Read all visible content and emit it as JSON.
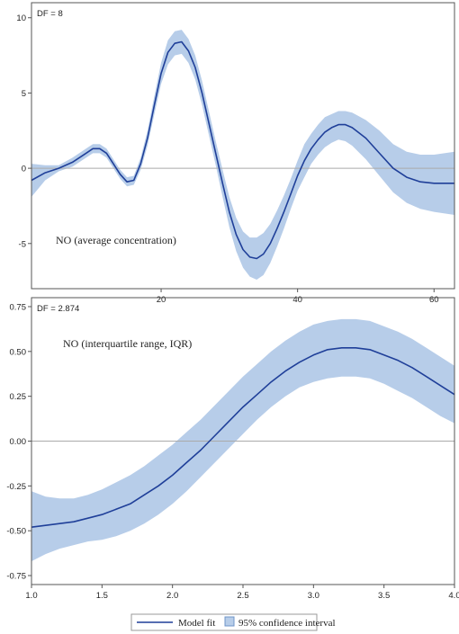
{
  "colors": {
    "line": "#1f3f99",
    "band": "#b7cde9",
    "band_stroke": "#6f95c8",
    "frame": "#555555",
    "zero_line": "#aaaaaa"
  },
  "chart_data": [
    {
      "type": "line",
      "df_label": "DF = 8",
      "annotation": "NO (average concentration)",
      "xlim": [
        1,
        63
      ],
      "ylim": [
        -8,
        11
      ],
      "x_ticks": [
        20,
        40,
        60
      ],
      "y_ticks": [
        -5,
        0,
        5,
        10
      ],
      "reference_line": 0,
      "series": [
        {
          "name": "Model fit",
          "x": [
            1,
            3,
            5,
            7,
            9,
            10,
            11,
            12,
            14,
            15,
            16,
            17,
            18,
            19,
            20,
            21,
            22,
            23,
            24,
            25,
            26,
            27,
            28,
            29,
            30,
            31,
            32,
            33,
            34,
            35,
            36,
            37,
            38,
            39,
            40,
            41,
            42,
            43,
            44,
            45,
            46,
            47,
            48,
            50,
            52,
            54,
            56,
            58,
            60,
            63
          ],
          "y": [
            -0.8,
            -0.3,
            0.0,
            0.4,
            1.0,
            1.3,
            1.3,
            1.0,
            -0.4,
            -0.9,
            -0.8,
            0.3,
            2.0,
            4.2,
            6.3,
            7.7,
            8.3,
            8.4,
            7.8,
            6.7,
            5.0,
            3.0,
            1.0,
            -1.0,
            -2.9,
            -4.4,
            -5.4,
            -5.9,
            -6.0,
            -5.7,
            -5.0,
            -4.0,
            -2.9,
            -1.7,
            -0.5,
            0.5,
            1.3,
            1.9,
            2.4,
            2.7,
            2.9,
            2.9,
            2.7,
            2.0,
            1.0,
            0.0,
            -0.6,
            -0.9,
            -1.0,
            -1.0
          ]
        }
      ],
      "confidence_interval": {
        "name": "95% confidence interval",
        "lower": [
          -1.9,
          -0.8,
          -0.2,
          0.1,
          0.7,
          1.0,
          1.0,
          0.7,
          -0.7,
          -1.2,
          -1.1,
          -0.1,
          1.5,
          3.6,
          5.6,
          6.9,
          7.5,
          7.6,
          7.0,
          5.9,
          4.2,
          2.2,
          0.2,
          -1.9,
          -3.9,
          -5.5,
          -6.6,
          -7.2,
          -7.4,
          -7.1,
          -6.3,
          -5.2,
          -4.0,
          -2.7,
          -1.5,
          -0.6,
          0.3,
          0.9,
          1.4,
          1.7,
          1.9,
          1.8,
          1.5,
          0.6,
          -0.5,
          -1.6,
          -2.3,
          -2.7,
          -2.9,
          -3.1
        ],
        "upper": [
          0.3,
          0.2,
          0.2,
          0.7,
          1.3,
          1.6,
          1.6,
          1.3,
          -0.1,
          -0.6,
          -0.5,
          0.7,
          2.5,
          4.8,
          7.0,
          8.5,
          9.1,
          9.2,
          8.6,
          7.5,
          5.8,
          3.8,
          1.8,
          -0.1,
          -1.9,
          -3.3,
          -4.2,
          -4.6,
          -4.6,
          -4.3,
          -3.7,
          -2.8,
          -1.8,
          -0.7,
          0.5,
          1.6,
          2.3,
          2.9,
          3.4,
          3.6,
          3.8,
          3.8,
          3.7,
          3.2,
          2.5,
          1.6,
          1.1,
          0.9,
          0.9,
          1.1
        ]
      }
    },
    {
      "type": "line",
      "df_label": "DF = 2.874",
      "annotation": "NO (interquartile range, IQR)",
      "xlim": [
        1.0,
        4.0
      ],
      "ylim": [
        -0.8,
        0.8
      ],
      "x_ticks": [
        "1.0",
        "1.5",
        "2.0",
        "2.5",
        "3.0",
        "3.5",
        "4.0"
      ],
      "y_ticks": [
        "-0.75",
        "-0.50",
        "-0.25",
        "0.00",
        "0.25",
        "0.50",
        "0.75"
      ],
      "reference_line": 0,
      "series": [
        {
          "name": "Model fit",
          "x": [
            1.0,
            1.1,
            1.2,
            1.3,
            1.4,
            1.5,
            1.6,
            1.7,
            1.8,
            1.9,
            2.0,
            2.1,
            2.2,
            2.3,
            2.4,
            2.5,
            2.6,
            2.7,
            2.8,
            2.9,
            3.0,
            3.1,
            3.2,
            3.3,
            3.4,
            3.5,
            3.6,
            3.7,
            3.8,
            3.9,
            4.0
          ],
          "y": [
            -0.48,
            -0.47,
            -0.46,
            -0.45,
            -0.43,
            -0.41,
            -0.38,
            -0.35,
            -0.3,
            -0.25,
            -0.19,
            -0.12,
            -0.05,
            0.03,
            0.11,
            0.19,
            0.26,
            0.33,
            0.39,
            0.44,
            0.48,
            0.51,
            0.52,
            0.52,
            0.51,
            0.48,
            0.45,
            0.41,
            0.36,
            0.31,
            0.26
          ]
        }
      ],
      "confidence_interval": {
        "name": "95% confidence interval",
        "lower": [
          -0.67,
          -0.63,
          -0.6,
          -0.58,
          -0.56,
          -0.55,
          -0.53,
          -0.5,
          -0.46,
          -0.41,
          -0.35,
          -0.28,
          -0.2,
          -0.12,
          -0.04,
          0.04,
          0.12,
          0.19,
          0.25,
          0.3,
          0.33,
          0.35,
          0.36,
          0.36,
          0.35,
          0.32,
          0.28,
          0.24,
          0.19,
          0.14,
          0.1
        ],
        "upper": [
          -0.28,
          -0.31,
          -0.32,
          -0.32,
          -0.3,
          -0.27,
          -0.23,
          -0.19,
          -0.14,
          -0.08,
          -0.02,
          0.05,
          0.12,
          0.2,
          0.28,
          0.36,
          0.43,
          0.5,
          0.56,
          0.61,
          0.65,
          0.67,
          0.68,
          0.68,
          0.67,
          0.64,
          0.61,
          0.57,
          0.52,
          0.47,
          0.42
        ]
      }
    }
  ],
  "legend": {
    "line_label": "Model fit",
    "band_label": "95% confidence interval"
  }
}
